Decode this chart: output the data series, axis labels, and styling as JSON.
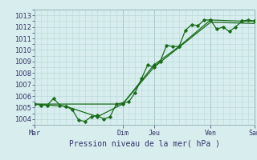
{
  "title": "Pression niveau de la mer( hPa )",
  "bg_color": "#d8eeee",
  "grid_color": "#b8d8d8",
  "line_color": "#1a6b1a",
  "ylim": [
    1003.5,
    1013.5
  ],
  "yticks": [
    1004,
    1005,
    1006,
    1007,
    1008,
    1009,
    1010,
    1011,
    1012,
    1013
  ],
  "x_day_labels": [
    "Mar",
    "Dim",
    "Jeu",
    "Ven",
    "Sam"
  ],
  "x_day_positions": [
    0,
    14,
    19,
    28,
    35
  ],
  "series1_x": [
    0,
    1,
    2,
    3,
    4,
    5,
    6,
    7,
    8,
    9,
    10,
    11,
    12,
    13,
    14,
    15,
    16,
    17,
    18,
    19,
    20,
    21,
    22,
    23,
    24,
    25,
    26,
    27,
    28,
    29,
    30,
    31,
    32,
    33,
    34,
    35
  ],
  "series1_y": [
    1005.3,
    1005.2,
    1005.2,
    1005.8,
    1005.2,
    1005.1,
    1004.8,
    1003.9,
    1003.8,
    1004.2,
    1004.3,
    1004.0,
    1004.2,
    1005.3,
    1005.4,
    1005.5,
    1006.3,
    1007.5,
    1008.7,
    1008.5,
    1009.0,
    1010.4,
    1010.3,
    1010.3,
    1011.7,
    1012.2,
    1012.1,
    1012.6,
    1012.6,
    1011.8,
    1012.0,
    1011.6,
    1012.0,
    1012.5,
    1012.6,
    1012.5
  ],
  "series2_x": [
    0,
    5,
    10,
    14,
    19,
    23,
    28,
    33,
    35
  ],
  "series2_y": [
    1005.3,
    1005.1,
    1004.2,
    1005.3,
    1008.7,
    1010.3,
    1012.6,
    1012.5,
    1012.5
  ],
  "series3_x": [
    0,
    14,
    19,
    28,
    35
  ],
  "series3_y": [
    1005.3,
    1005.3,
    1008.5,
    1012.4,
    1012.3
  ]
}
